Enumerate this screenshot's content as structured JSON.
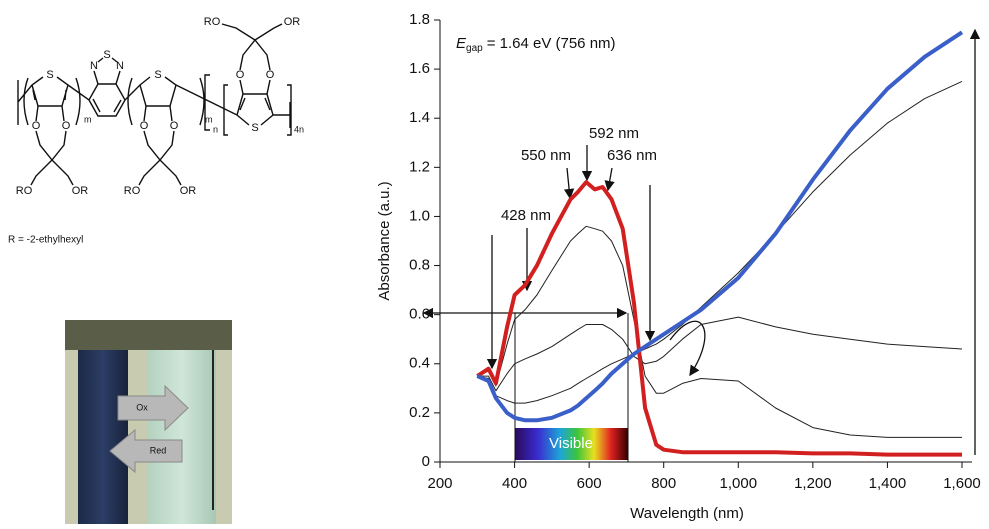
{
  "structure": {
    "labels": [
      "S",
      "N",
      "S",
      "N",
      "S",
      "S",
      "O",
      "O",
      "O",
      "O",
      "O",
      "O",
      "RO",
      "OR",
      "RO",
      "OR",
      "RO",
      "OR",
      "m",
      "m",
      "n",
      "4n"
    ],
    "note": "R = -2-ethylhexyl"
  },
  "photo": {
    "oxidize": "Ox",
    "reduce": "Red"
  },
  "chart_data": {
    "type": "line",
    "x_label": "Wavelength (nm)",
    "y_label": "Absorbance (a.u.)",
    "egap": {
      "symbol": "E",
      "subscript": "gap",
      "text": "= 1.64 eV (756 nm)"
    },
    "peak_labels": [
      "428 nm",
      "550 nm",
      "592 nm",
      "636 nm"
    ],
    "band_label": "Visible",
    "x": [
      300,
      330,
      350,
      380,
      400,
      428,
      460,
      500,
      550,
      570,
      592,
      615,
      636,
      660,
      690,
      720,
      750,
      780,
      800,
      850,
      900,
      1000,
      1100,
      1200,
      1300,
      1400,
      1500,
      1600
    ],
    "series": [
      {
        "color": "#222222",
        "values": [
          0.35,
          0.37,
          0.31,
          0.48,
          0.58,
          0.62,
          0.68,
          0.78,
          0.9,
          0.93,
          0.96,
          0.95,
          0.94,
          0.9,
          0.8,
          0.58,
          0.35,
          0.28,
          0.28,
          0.32,
          0.34,
          0.33,
          0.22,
          0.14,
          0.11,
          0.1,
          0.1,
          0.1
        ]
      },
      {
        "color": "#222222",
        "values": [
          0.35,
          0.35,
          0.29,
          0.36,
          0.4,
          0.42,
          0.44,
          0.47,
          0.52,
          0.54,
          0.56,
          0.56,
          0.56,
          0.54,
          0.5,
          0.43,
          0.4,
          0.41,
          0.43,
          0.5,
          0.56,
          0.59,
          0.55,
          0.52,
          0.5,
          0.48,
          0.47,
          0.46
        ]
      },
      {
        "color": "#222222",
        "values": [
          0.35,
          0.34,
          0.27,
          0.25,
          0.24,
          0.24,
          0.25,
          0.27,
          0.3,
          0.32,
          0.34,
          0.36,
          0.38,
          0.4,
          0.42,
          0.44,
          0.46,
          0.48,
          0.5,
          0.56,
          0.63,
          0.77,
          0.93,
          1.1,
          1.25,
          1.38,
          1.48,
          1.55
        ]
      },
      {
        "color": "#d22020",
        "values": [
          0.35,
          0.38,
          0.32,
          0.55,
          0.68,
          0.72,
          0.8,
          0.93,
          1.07,
          1.1,
          1.14,
          1.11,
          1.12,
          1.07,
          0.95,
          0.65,
          0.22,
          0.07,
          0.05,
          0.04,
          0.04,
          0.04,
          0.04,
          0.035,
          0.035,
          0.03,
          0.03,
          0.03
        ]
      },
      {
        "color": "#3a5fc8",
        "values": [
          0.35,
          0.33,
          0.26,
          0.2,
          0.18,
          0.17,
          0.17,
          0.18,
          0.21,
          0.23,
          0.26,
          0.29,
          0.32,
          0.36,
          0.4,
          0.44,
          0.47,
          0.5,
          0.52,
          0.57,
          0.62,
          0.75,
          0.93,
          1.15,
          1.35,
          1.52,
          1.65,
          1.75
        ]
      }
    ],
    "xlim": [
      200,
      1600
    ],
    "ylim": [
      0,
      1.8
    ],
    "xticks": [
      200,
      400,
      600,
      800,
      {
        "value": 1000,
        "label": "1,000"
      },
      {
        "value": 1200,
        "label": "1,200"
      },
      {
        "value": 1400,
        "label": "1,400"
      },
      {
        "value": 1600,
        "label": "1,600"
      }
    ],
    "yticks": [
      0,
      0.2,
      0.4,
      0.6,
      0.8,
      {
        "value": 1,
        "label": "1.0"
      },
      1.2,
      1.4,
      1.6,
      1.8
    ]
  }
}
